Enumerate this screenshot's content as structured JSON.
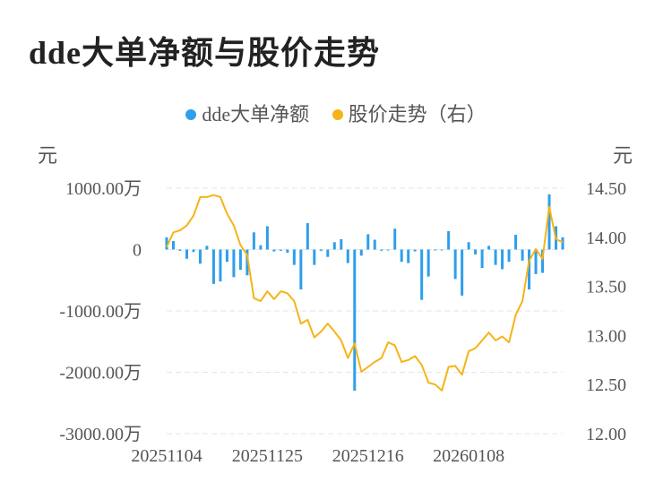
{
  "title": "dde大单净额与股价走势",
  "legend": [
    {
      "label": "dde大单净额",
      "color": "#2e9fea"
    },
    {
      "label": "股价走势（右）",
      "color": "#f5b417"
    }
  ],
  "left_unit": "元",
  "right_unit": "元",
  "chart_data": {
    "type": "bar+line",
    "x_tick_labels": [
      "20251104",
      "20251125",
      "20251216",
      "20260108"
    ],
    "x_tick_indices": [
      0,
      15,
      30,
      45
    ],
    "y_left": {
      "ticks": [
        1000,
        0,
        -1000,
        -2000,
        -3000
      ],
      "tick_labels": [
        "1000.00万",
        "0",
        "-1000.00万",
        "-2000.00万",
        "-3000.00万"
      ],
      "range": [
        -3000,
        1000
      ],
      "unit": "万元"
    },
    "y_right": {
      "ticks": [
        14.5,
        14.0,
        13.5,
        13.0,
        12.5,
        12.0
      ],
      "tick_labels": [
        "14.50",
        "14.00",
        "13.50",
        "13.00",
        "12.50",
        "12.00"
      ],
      "range": [
        12.0,
        14.5
      ]
    },
    "grid": true,
    "series": [
      {
        "name": "dde大单净额",
        "type": "bar",
        "axis": "left",
        "values": [
          200,
          140,
          -20,
          -150,
          -40,
          -230,
          60,
          -560,
          -520,
          -200,
          -450,
          -330,
          -420,
          280,
          70,
          380,
          -30,
          -20,
          -50,
          -250,
          -650,
          430,
          -250,
          -20,
          -120,
          120,
          170,
          -220,
          -2300,
          -100,
          250,
          160,
          -20,
          -10,
          340,
          -200,
          -220,
          -30,
          -820,
          -440,
          -5,
          -5,
          300,
          -480,
          -750,
          120,
          -80,
          -300,
          60,
          -250,
          -320,
          -200,
          240,
          -180,
          -650,
          -400,
          -380,
          900,
          380,
          200
        ]
      },
      {
        "name": "股价走势（右）",
        "type": "line",
        "axis": "right",
        "values": [
          13.9,
          14.05,
          14.07,
          14.12,
          14.22,
          14.41,
          14.41,
          14.43,
          14.41,
          14.24,
          14.12,
          13.92,
          13.82,
          13.38,
          13.35,
          13.45,
          13.37,
          13.45,
          13.43,
          13.35,
          13.12,
          13.16,
          12.98,
          13.04,
          13.12,
          13.04,
          12.95,
          12.77,
          12.92,
          12.63,
          12.68,
          12.73,
          12.77,
          12.93,
          12.9,
          12.73,
          12.75,
          12.79,
          12.7,
          12.52,
          12.5,
          12.44,
          12.68,
          12.69,
          12.6,
          12.84,
          12.87,
          12.95,
          13.03,
          12.95,
          12.99,
          12.93,
          13.21,
          13.35,
          13.76,
          13.88,
          13.78,
          14.31,
          13.98,
          13.95
        ]
      }
    ]
  }
}
